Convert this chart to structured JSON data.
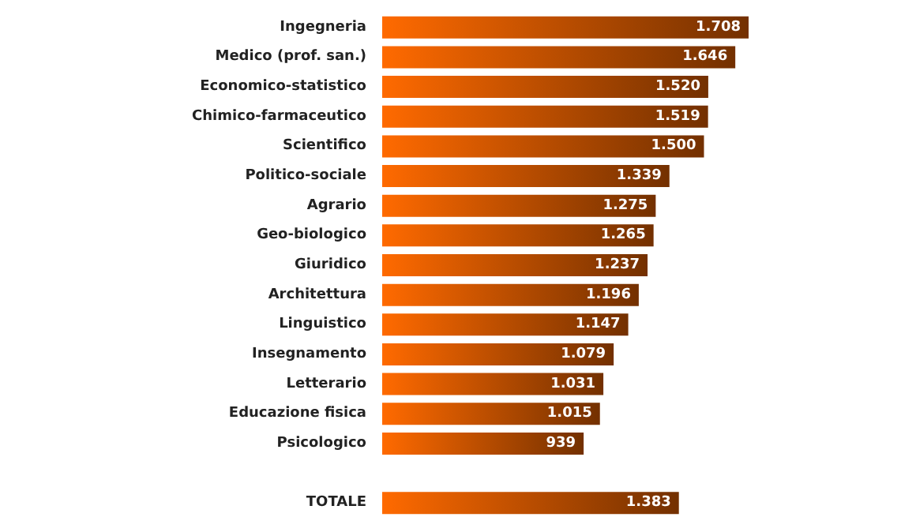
{
  "chart_data": {
    "type": "bar",
    "orientation": "horizontal",
    "categories": [
      "Ingegneria",
      "Medico (prof. san.)",
      "Economico-statistico",
      "Chimico-farmaceutico",
      "Scientifico",
      "Politico-sociale",
      "Agrario",
      "Geo-biologico",
      "Giuridico",
      "Architettura",
      "Linguistico",
      "Insegnamento",
      "Letterario",
      "Educazione fisica",
      "Psicologico",
      null,
      "TOTALE"
    ],
    "values": [
      1708,
      1646,
      1520,
      1519,
      1500,
      1339,
      1275,
      1265,
      1237,
      1196,
      1147,
      1079,
      1031,
      1015,
      939,
      null,
      1383
    ],
    "value_labels": [
      "1.708",
      "1.646",
      "1.520",
      "1.519",
      "1.500",
      "1.339",
      "1.275",
      "1.265",
      "1.237",
      "1.196",
      "1.147",
      "1.079",
      "1.031",
      "1.015",
      "939",
      null,
      "1.383"
    ],
    "color": "#ff6a00",
    "tick_labels": "y"
  }
}
